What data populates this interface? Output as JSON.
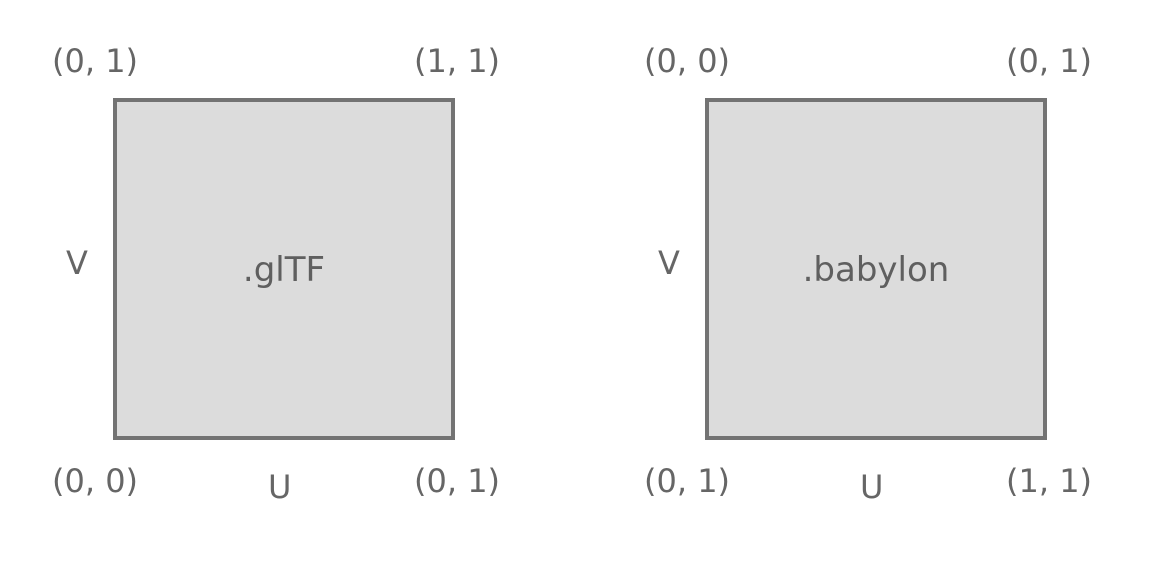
{
  "diagrams": [
    {
      "format": ".glTF",
      "corners": {
        "top_left": "(0, 1)",
        "top_right": "(1, 1)",
        "bottom_left": "(0, 0)",
        "bottom_right": "(0, 1)"
      },
      "axis_v": "V",
      "axis_u": "U"
    },
    {
      "format": ".babylon",
      "corners": {
        "top_left": "(0, 0)",
        "top_right": "(0, 1)",
        "bottom_left": "(0, 1)",
        "bottom_right": "(1, 1)"
      },
      "axis_v": "V",
      "axis_u": "U"
    }
  ],
  "colors": {
    "square_fill": "#dcdcdc",
    "square_border": "#737373",
    "text": "#666666"
  }
}
